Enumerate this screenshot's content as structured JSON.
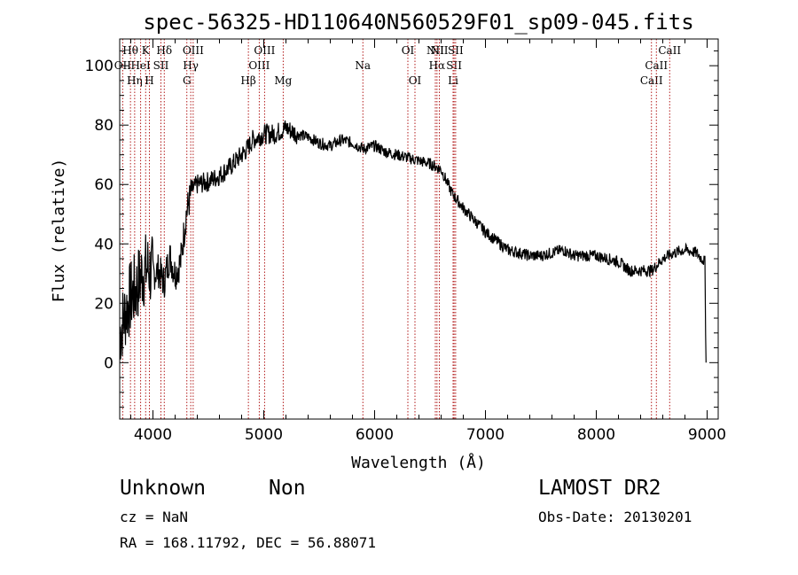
{
  "chart_data": {
    "type": "line",
    "title": "spec-56325-HD110640N560529F01_sp09-045.fits",
    "xlabel": "Wavelength (Å)",
    "ylabel": "Flux (relative)",
    "xlim": [
      3700,
      9100
    ],
    "ylim": [
      -19,
      109
    ],
    "x_ticks": [
      4000,
      5000,
      6000,
      7000,
      8000,
      9000
    ],
    "y_ticks": [
      0,
      20,
      40,
      60,
      80,
      100
    ],
    "spectrum_points": [
      [
        3700,
        10
      ],
      [
        3760,
        18
      ],
      [
        3800,
        22
      ],
      [
        3850,
        25
      ],
      [
        3900,
        30
      ],
      [
        3950,
        32
      ],
      [
        4000,
        30
      ],
      [
        4050,
        31
      ],
      [
        4100,
        27
      ],
      [
        4150,
        36
      ],
      [
        4200,
        30
      ],
      [
        4250,
        34
      ],
      [
        4300,
        50
      ],
      [
        4350,
        58
      ],
      [
        4400,
        60
      ],
      [
        4500,
        61
      ],
      [
        4600,
        63
      ],
      [
        4700,
        66
      ],
      [
        4800,
        70
      ],
      [
        4850,
        72
      ],
      [
        4900,
        75
      ],
      [
        5000,
        77
      ],
      [
        5100,
        77
      ],
      [
        5200,
        79
      ],
      [
        5300,
        77
      ],
      [
        5400,
        76
      ],
      [
        5500,
        74
      ],
      [
        5600,
        73
      ],
      [
        5700,
        75
      ],
      [
        5800,
        74
      ],
      [
        5900,
        72
      ],
      [
        6000,
        73
      ],
      [
        6100,
        71
      ],
      [
        6200,
        70
      ],
      [
        6300,
        69
      ],
      [
        6400,
        68
      ],
      [
        6500,
        67
      ],
      [
        6600,
        65
      ],
      [
        6700,
        57
      ],
      [
        6800,
        52
      ],
      [
        6900,
        48
      ],
      [
        7000,
        44
      ],
      [
        7100,
        41
      ],
      [
        7200,
        38
      ],
      [
        7300,
        37
      ],
      [
        7400,
        36
      ],
      [
        7500,
        36
      ],
      [
        7600,
        37
      ],
      [
        7700,
        38
      ],
      [
        7800,
        36
      ],
      [
        7900,
        36
      ],
      [
        8000,
        36
      ],
      [
        8100,
        35
      ],
      [
        8200,
        34
      ],
      [
        8300,
        31
      ],
      [
        8400,
        31
      ],
      [
        8500,
        31
      ],
      [
        8600,
        35
      ],
      [
        8700,
        37
      ],
      [
        8800,
        38
      ],
      [
        8900,
        37
      ],
      [
        8980,
        34
      ],
      [
        8990,
        0
      ]
    ],
    "spectral_lines": [
      {
        "label": "Hθ",
        "wavelength": 3797,
        "row": 1
      },
      {
        "label": "OII",
        "wavelength": 3727,
        "row": 2
      },
      {
        "label": "Hη",
        "wavelength": 3835,
        "row": 3
      },
      {
        "label": "HeI",
        "wavelength": 3889,
        "row": 2
      },
      {
        "label": "K",
        "wavelength": 3934,
        "row": 1
      },
      {
        "label": "H",
        "wavelength": 3968,
        "row": 3
      },
      {
        "label": "SII",
        "wavelength": 4072,
        "row": 2
      },
      {
        "label": "Hδ",
        "wavelength": 4102,
        "row": 1
      },
      {
        "label": "G",
        "wavelength": 4306,
        "row": 3
      },
      {
        "label": "Hγ",
        "wavelength": 4341,
        "row": 2
      },
      {
        "label": "OIII",
        "wavelength": 4363,
        "row": 1
      },
      {
        "label": "Hβ",
        "wavelength": 4861,
        "row": 3
      },
      {
        "label": "OIII",
        "wavelength": 4959,
        "row": 2
      },
      {
        "label": "OIII",
        "wavelength": 5007,
        "row": 1
      },
      {
        "label": "Mg",
        "wavelength": 5175,
        "row": 3
      },
      {
        "label": "Na",
        "wavelength": 5894,
        "row": 2
      },
      {
        "label": "OI",
        "wavelength": 6300,
        "row": 1
      },
      {
        "label": "OI",
        "wavelength": 6364,
        "row": 3
      },
      {
        "label": "NII",
        "wavelength": 6548,
        "row": 1
      },
      {
        "label": "Hα",
        "wavelength": 6563,
        "row": 2
      },
      {
        "label": "NII",
        "wavelength": 6584,
        "row": 1
      },
      {
        "label": "Li",
        "wavelength": 6708,
        "row": 3
      },
      {
        "label": "SII",
        "wavelength": 6717,
        "row": 2
      },
      {
        "label": "SII",
        "wavelength": 6731,
        "row": 1
      },
      {
        "label": "CaII",
        "wavelength": 8498,
        "row": 3
      },
      {
        "label": "CaII",
        "wavelength": 8542,
        "row": 2
      },
      {
        "label": "CaII",
        "wavelength": 8662,
        "row": 1
      }
    ]
  },
  "info": {
    "class_text": "Unknown",
    "subclass_text": "Non",
    "survey": "LAMOST DR2",
    "cz": "cz = NaN",
    "obs_date": "Obs-Date: 20130201",
    "radec": "RA = 168.11792, DEC =  56.88071"
  },
  "colors": {
    "spectrum": "#000000",
    "line_markers": "#aa0000",
    "axes": "#000000"
  }
}
